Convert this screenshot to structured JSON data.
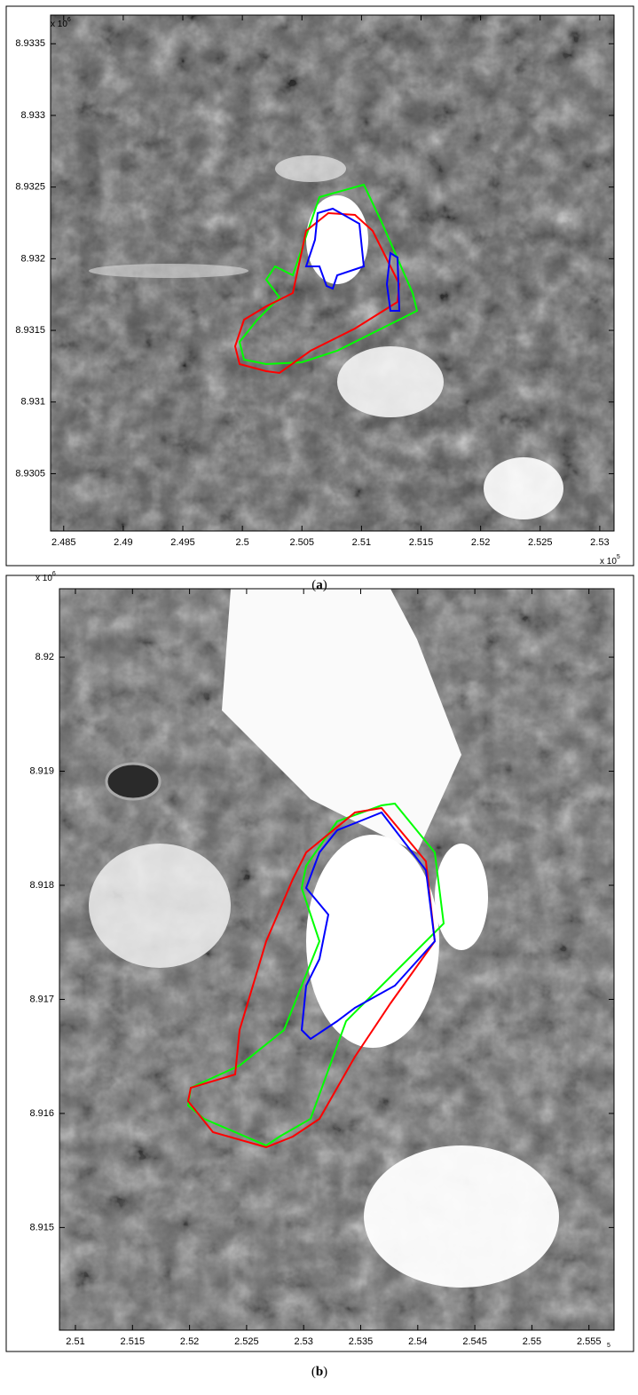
{
  "chart_data": [
    {
      "type": "image",
      "xlim": [
        2.4839,
        2.5312
      ],
      "xticks": [
        2.485,
        2.49,
        2.495,
        2.5,
        2.505,
        2.51,
        2.515,
        2.52,
        2.525,
        2.53
      ],
      "ylim": [
        8.9301,
        8.9337
      ],
      "yticks": [
        8.9305,
        8.931,
        8.9315,
        8.932,
        8.9325,
        8.933,
        8.9335
      ],
      "x_multiplier": {
        "base": "x 10",
        "exponent": "5"
      },
      "y_multiplier": {
        "base": "x 10",
        "exponent": "6"
      },
      "caption": {
        "open": "(",
        "letter": "a",
        "close": ")"
      }
    },
    {
      "type": "image",
      "xlim": [
        2.5086,
        2.5572
      ],
      "xticks": [
        2.51,
        2.515,
        2.52,
        2.525,
        2.53,
        2.535,
        2.54,
        2.545,
        2.55,
        2.555
      ],
      "ylim": [
        8.9141,
        8.9206
      ],
      "yticks": [
        8.915,
        8.916,
        8.917,
        8.918,
        8.919,
        8.92
      ],
      "x_multiplier": {
        "exponent": "5"
      },
      "y_multiplier": {
        "base": "x 10",
        "exponent": "6"
      },
      "caption": {
        "open": "(",
        "letter": "b",
        "close": ")"
      }
    }
  ]
}
